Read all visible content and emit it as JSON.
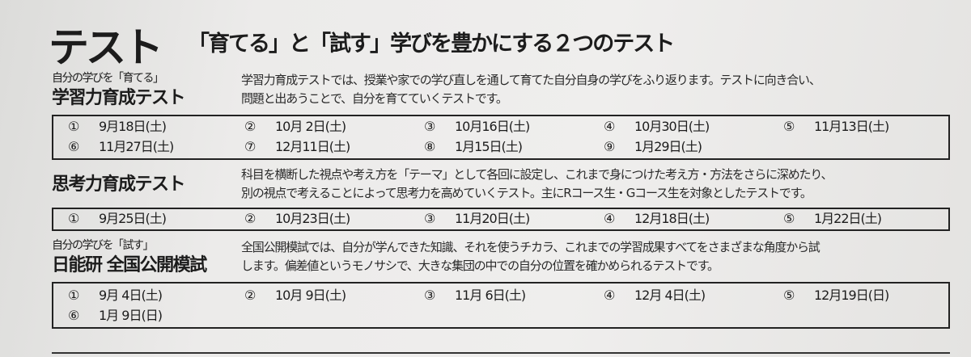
{
  "title": "テスト",
  "subtitle": "「育てる」と「試す」学びを豊かにする２つのテスト",
  "sections": [
    {
      "label": "自分の学びを「育てる」",
      "title": "学習力育成テスト",
      "desc": [
        "学習力育成テストでは、授業や家での学び直しを通して育てた自分自身の学びをふり返ります。テストに向き合い、",
        "問題と出あうことで、自分を育てていくテストです。"
      ],
      "dates": [
        [
          "①",
          "9月18日(土)"
        ],
        [
          "②",
          "10月 2日(土)"
        ],
        [
          "③",
          "10月16日(土)"
        ],
        [
          "④",
          "10月30日(土)"
        ],
        [
          "⑤",
          "11月13日(土)"
        ],
        [
          "⑥",
          "11月27日(土)"
        ],
        [
          "⑦",
          "12月11日(土)"
        ],
        [
          "⑧",
          "1月15日(土)"
        ],
        [
          "⑨",
          "1月29日(土)"
        ]
      ]
    },
    {
      "label": "",
      "title": "思考力育成テスト",
      "desc": [
        "科目を横断した視点や考え方を「テーマ」として各回に設定し、これまで身につけた考え方・方法をさらに深めたり、",
        "別の視点で考えることによって思考力を高めていくテスト。主にRコース生・Gコース生を対象としたテストです。"
      ],
      "dates": [
        [
          "①",
          "9月25日(土)"
        ],
        [
          "②",
          "10月23日(土)"
        ],
        [
          "③",
          "11月20日(土)"
        ],
        [
          "④",
          "12月18日(土)"
        ],
        [
          "⑤",
          "1月22日(土)"
        ]
      ]
    },
    {
      "label": "自分の学びを「試す」",
      "title": "日能研  全国公開模試",
      "desc": [
        "全国公開模試では、自分が学んできた知識、それを使うチカラ、これまでの学習成果すべてをさまざまな角度から試",
        "します。偏差値というモノサシで、大きな集団の中での自分の位置を確かめられるテストです。"
      ],
      "dates": [
        [
          "①",
          "9月 4日(土)"
        ],
        [
          "②",
          "10月 9日(土)"
        ],
        [
          "③",
          "11月 6日(土)"
        ],
        [
          "④",
          "12月 4日(土)"
        ],
        [
          "⑤",
          "12月19日(日)"
        ],
        [
          "⑥",
          "1月 9日(日)"
        ]
      ]
    }
  ]
}
